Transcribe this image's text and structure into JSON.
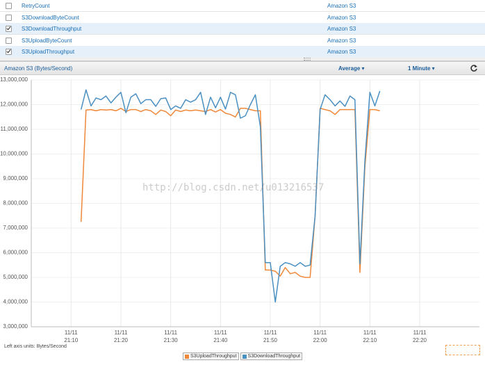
{
  "table": {
    "rows": [
      {
        "checked": false,
        "metric": "RetryCount",
        "namespace": "Amazon S3"
      },
      {
        "checked": false,
        "metric": "S3DownloadByteCount",
        "namespace": "Amazon S3"
      },
      {
        "checked": true,
        "metric": "S3DownloadThroughput",
        "namespace": "Amazon S3"
      },
      {
        "checked": false,
        "metric": "S3UploadByteCount",
        "namespace": "Amazon S3"
      },
      {
        "checked": true,
        "metric": "S3UploadThroughput",
        "namespace": "Amazon S3"
      }
    ]
  },
  "toolbar": {
    "title": "Amazon S3 (Bytes/Second)",
    "statistic": "Average",
    "period": "1 Minute"
  },
  "watermark": "http://blog.csdn.net/u013216537",
  "chart_data": {
    "type": "line",
    "grid": true,
    "legend": "bottom",
    "axis_note": "Left axis units: Bytes/Second",
    "x": [
      "11/11 21:12",
      "11/11 21:13",
      "11/11 21:14",
      "11/11 21:15",
      "11/11 21:16",
      "11/11 21:17",
      "11/11 21:18",
      "11/11 21:19",
      "11/11 21:20",
      "11/11 21:21",
      "11/11 21:22",
      "11/11 21:23",
      "11/11 21:24",
      "11/11 21:25",
      "11/11 21:26",
      "11/11 21:27",
      "11/11 21:28",
      "11/11 21:29",
      "11/11 21:30",
      "11/11 21:31",
      "11/11 21:32",
      "11/11 21:33",
      "11/11 21:34",
      "11/11 21:35",
      "11/11 21:36",
      "11/11 21:37",
      "11/11 21:38",
      "11/11 21:39",
      "11/11 21:40",
      "11/11 21:41",
      "11/11 21:42",
      "11/11 21:43",
      "11/11 21:44",
      "11/11 21:45",
      "11/11 21:46",
      "11/11 21:47",
      "11/11 21:48",
      "11/11 21:49",
      "11/11 21:50",
      "11/11 21:51",
      "11/11 21:52",
      "11/11 21:53",
      "11/11 21:54",
      "11/11 21:55",
      "11/11 21:56",
      "11/11 21:57",
      "11/11 21:58",
      "11/11 21:59",
      "11/11 22:00",
      "11/11 22:01",
      "11/11 22:02",
      "11/11 22:03",
      "11/11 22:04",
      "11/11 22:05",
      "11/11 22:06",
      "11/11 22:07",
      "11/11 22:08",
      "11/11 22:09",
      "11/11 22:10",
      "11/11 22:11",
      "11/11 22:12"
    ],
    "series": [
      {
        "name": "S3UploadThroughput",
        "color": "#f0883a",
        "values": [
          7250000,
          11780000,
          11800000,
          11750000,
          11800000,
          11780000,
          11800000,
          11750000,
          11850000,
          11720000,
          11800000,
          11800000,
          11720000,
          11800000,
          11750000,
          11600000,
          11780000,
          11720000,
          11550000,
          11780000,
          11720000,
          11780000,
          11750000,
          11780000,
          11750000,
          11720000,
          11800000,
          11700000,
          11800000,
          11650000,
          11600000,
          11500000,
          11850000,
          11850000,
          11800000,
          11750000,
          11750000,
          5300000,
          5300000,
          5250000,
          5050000,
          5400000,
          5150000,
          5200000,
          5050000,
          5000000,
          5000000,
          7500000,
          11850000,
          11800000,
          11750000,
          11600000,
          11800000,
          11800000,
          11800000,
          11800000,
          5200000,
          9500000,
          11800000,
          11800000,
          11750000
        ]
      },
      {
        "name": "S3DownloadThroughput",
        "color": "#4a90c2",
        "values": [
          11800000,
          12600000,
          11950000,
          12270000,
          12200000,
          12350000,
          12070000,
          12300000,
          12500000,
          11670000,
          12300000,
          12440000,
          12040000,
          12200000,
          12200000,
          11930000,
          12240000,
          12270000,
          11800000,
          11950000,
          11850000,
          12200000,
          12100000,
          12200000,
          12500000,
          11600000,
          12300000,
          11870000,
          12300000,
          11820000,
          12500000,
          12400000,
          11450000,
          11550000,
          12000000,
          12400000,
          11100000,
          5600000,
          5600000,
          4000000,
          5450000,
          5600000,
          5550000,
          5450000,
          5600000,
          5450000,
          5500000,
          7500000,
          11800000,
          12400000,
          12200000,
          11950000,
          12150000,
          11930000,
          12350000,
          12200000,
          5550000,
          9750000,
          12500000,
          11950000,
          12550000
        ]
      }
    ],
    "xlim": [
      "11/11 21:02",
      "11/11 22:32"
    ],
    "xticks": [
      "11/11 21:10",
      "11/11 21:20",
      "11/11 21:30",
      "11/11 21:40",
      "11/11 21:50",
      "11/11 22:00",
      "11/11 22:10",
      "11/11 22:20"
    ],
    "ylim": [
      3000000,
      13000000
    ],
    "yticks": [
      {
        "value": 3000000,
        "label": "3,000,000"
      },
      {
        "value": 4000000,
        "label": "4,000,000"
      },
      {
        "value": 5000000,
        "label": "5,000,000"
      },
      {
        "value": 6000000,
        "label": "6,000,000"
      },
      {
        "value": 7000000,
        "label": "7,000,000"
      },
      {
        "value": 8000000,
        "label": "8,000,000"
      },
      {
        "value": 9000000,
        "label": "9,000,000"
      },
      {
        "value": 10000000,
        "label": "10,000,000"
      },
      {
        "value": 11000000,
        "label": "11,000,000"
      },
      {
        "value": 12000000,
        "label": "12,000,000"
      },
      {
        "value": 13000000,
        "label": "13,000,000"
      }
    ]
  }
}
